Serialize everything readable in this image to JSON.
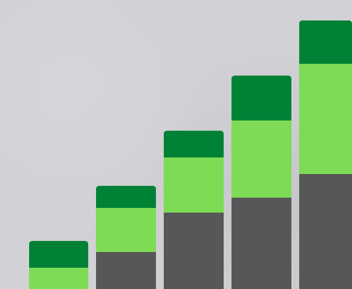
{
  "scene": {
    "background_color": "#d3d3d7",
    "bars": [
      {
        "dark_green_fraction": 0.55,
        "light_green_fraction": 0.45,
        "gray_fraction": 0.0
      },
      {
        "dark_green_fraction": 0.21,
        "light_green_fraction": 0.43,
        "gray_fraction": 0.36
      },
      {
        "dark_green_fraction": 0.17,
        "light_green_fraction": 0.35,
        "gray_fraction": 0.48
      },
      {
        "dark_green_fraction": 0.21,
        "light_green_fraction": 0.36,
        "gray_fraction": 0.43
      },
      {
        "dark_green_fraction": 0.16,
        "light_green_fraction": 0.41,
        "gray_fraction": 0.43
      }
    ],
    "colors": {
      "dark_green": "#008236",
      "light_green": "#7edb56",
      "gray": "#575757"
    }
  }
}
